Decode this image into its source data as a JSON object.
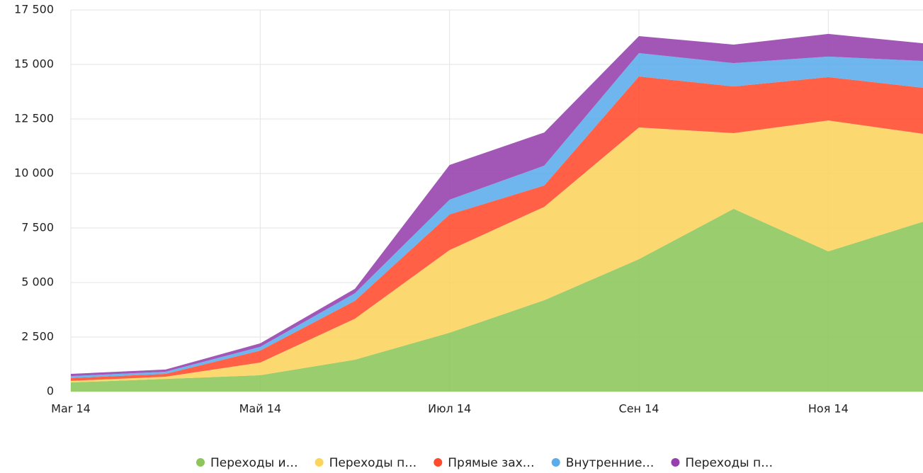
{
  "chart_data": {
    "type": "stacked_area",
    "categories": [
      "Mar 14",
      null,
      "Май 14",
      null,
      "Июл 14",
      null,
      "Сен 14",
      null,
      "Ноя 14",
      null
    ],
    "series": [
      {
        "name": "Переходы и…",
        "color": "#8cc65a",
        "values": [
          420,
          580,
          750,
          1460,
          2700,
          4190,
          6070,
          8380,
          6430,
          7790
        ]
      },
      {
        "name": "Переходы п…",
        "color": "#fcd45c",
        "values": [
          70,
          100,
          580,
          1880,
          3790,
          4280,
          6040,
          3470,
          6000,
          4030
        ]
      },
      {
        "name": "Прямые зах…",
        "color": "#ff4a2c",
        "values": [
          130,
          130,
          550,
          820,
          1630,
          980,
          2340,
          2140,
          1990,
          2110
        ]
      },
      {
        "name": "Внутренние…",
        "color": "#5aacea",
        "values": [
          90,
          100,
          170,
          350,
          680,
          910,
          1070,
          1070,
          940,
          1230
        ]
      },
      {
        "name": "Переходы п…",
        "color": "#9540ad",
        "values": [
          100,
          100,
          160,
          200,
          1590,
          1520,
          780,
          850,
          1040,
          810
        ]
      }
    ],
    "ylim": [
      0,
      17500
    ],
    "yticks": [
      0,
      {
        "value": 2500,
        "label": "2 500"
      },
      {
        "value": 5000,
        "label": "5 000"
      },
      {
        "value": 7500,
        "label": "7 500"
      },
      {
        "value": 10000,
        "label": "10 000"
      },
      {
        "value": 12500,
        "label": "12 500"
      },
      {
        "value": 15000,
        "label": "15 000"
      },
      {
        "value": 17500,
        "label": "17 500"
      }
    ],
    "grid": true,
    "legend": "bottom"
  }
}
